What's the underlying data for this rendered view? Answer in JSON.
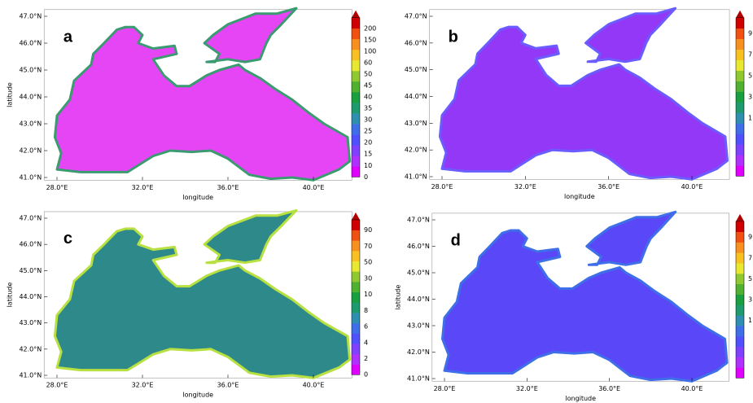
{
  "ylabel": "latitude",
  "xlabel": "longitude",
  "lat_ticks": [
    "41.0°N",
    "42.0°N",
    "43.0°N",
    "44.0°N",
    "45.0°N",
    "46.0°N",
    "47.0°N"
  ],
  "lon_ticks": [
    "28.0°E",
    "32.0°E",
    "36.0°E",
    "40.0°E"
  ],
  "palette": [
    "#e000ff",
    "#b030ff",
    "#8040ff",
    "#5050ff",
    "#3f6fe8",
    "#2f8fb0",
    "#1e9b6e",
    "#18a040",
    "#50b030",
    "#90c830",
    "#e8e830",
    "#f8c020",
    "#f89020",
    "#f05010",
    "#d00000"
  ],
  "panels": [
    {
      "letter": "a",
      "fill": "#e645f5",
      "edge": "#3a9a70",
      "show_ylabel": true,
      "colorbar_labels": [
        "200",
        "150",
        "100",
        "60",
        "50",
        "45",
        "40",
        "35",
        "30",
        "25",
        "20",
        "15",
        "10",
        "0"
      ]
    },
    {
      "letter": "b",
      "fill": "#9438f8",
      "edge": "#6a5cff",
      "show_ylabel": false,
      "colorbar_labels": [
        "9",
        "7",
        "5",
        "3",
        "1"
      ]
    },
    {
      "letter": "c",
      "fill": "#2e8a8a",
      "edge": "#b8e040",
      "show_ylabel": true,
      "colorbar_labels": [
        "90",
        "70",
        "50",
        "30",
        "10",
        "8",
        "6",
        "4",
        "2",
        "0"
      ]
    },
    {
      "letter": "d",
      "fill": "#5a48f8",
      "edge": "#3f6fe8",
      "show_ylabel": true,
      "colorbar_labels": [
        "9",
        "7",
        "5",
        "3",
        "1"
      ]
    }
  ]
}
